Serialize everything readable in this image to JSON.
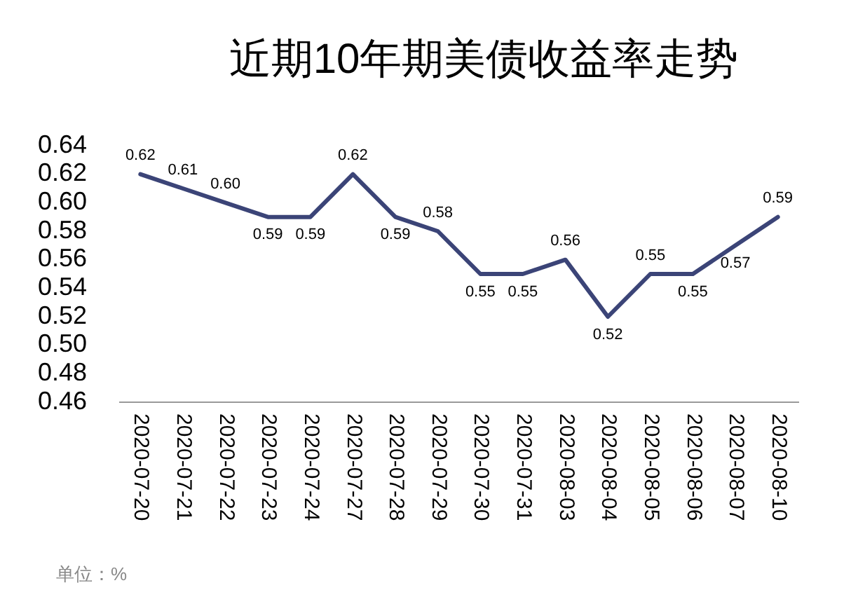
{
  "chart_data": {
    "type": "line",
    "title": "近期10年期美债收益率走势",
    "categories": [
      "2020-07-20",
      "2020-07-21",
      "2020-07-22",
      "2020-07-23",
      "2020-07-24",
      "2020-07-27",
      "2020-07-28",
      "2020-07-29",
      "2020-07-30",
      "2020-07-31",
      "2020-08-03",
      "2020-08-04",
      "2020-08-05",
      "2020-08-06",
      "2020-08-07",
      "2020-08-10"
    ],
    "values": [
      0.62,
      0.61,
      0.6,
      0.59,
      0.59,
      0.62,
      0.59,
      0.58,
      0.55,
      0.55,
      0.56,
      0.52,
      0.55,
      0.55,
      0.57,
      0.59
    ],
    "color": "#3b4477",
    "ylim": [
      0.46,
      0.64
    ],
    "yticks": [
      {
        "value": 0.46,
        "label": "0.46"
      },
      {
        "value": 0.48,
        "label": "0.48"
      },
      {
        "value": 0.5,
        "label": "0.50"
      },
      {
        "value": 0.52,
        "label": "0.52"
      },
      {
        "value": 0.54,
        "label": "0.54"
      },
      {
        "value": 0.56,
        "label": "0.56"
      },
      {
        "value": 0.58,
        "label": "0.58"
      },
      {
        "value": 0.6,
        "label": "0.60"
      },
      {
        "value": 0.62,
        "label": "0.62"
      },
      {
        "value": 0.64,
        "label": "0.64"
      }
    ],
    "value_labels": [
      "0.62",
      "0.61",
      "0.60",
      "0.59",
      "0.59",
      "0.62",
      "0.59",
      "0.58",
      "0.55",
      "0.55",
      "0.56",
      "0.52",
      "0.55",
      "0.55",
      "0.57",
      "0.59"
    ],
    "annotations": [
      "单位：%"
    ]
  }
}
